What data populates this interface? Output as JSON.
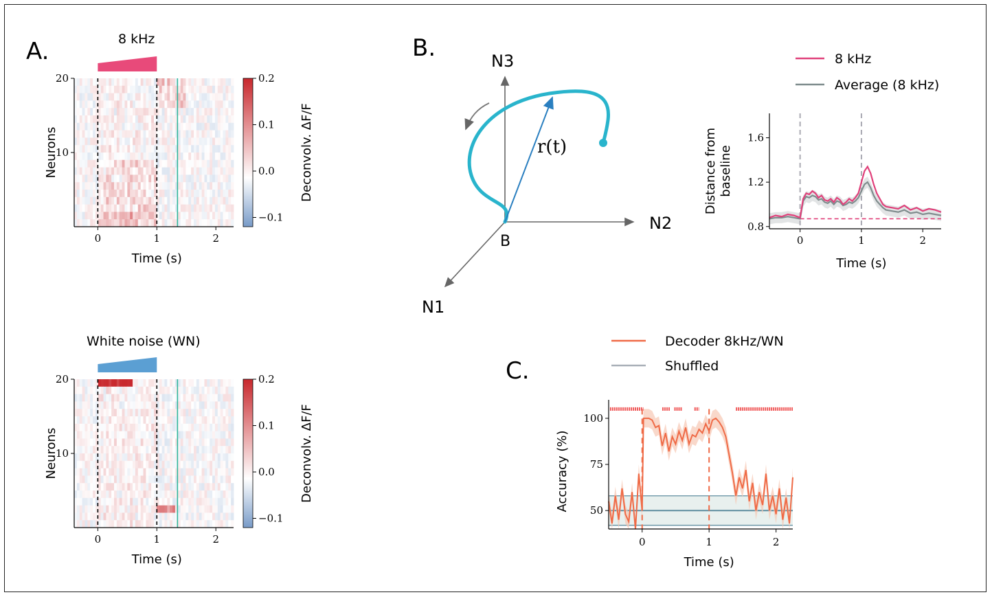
{
  "panel_labels": {
    "a": "A.",
    "b": "B.",
    "c": "C."
  },
  "heatmaps": [
    {
      "id": "8khz",
      "title": "8 kHz",
      "ramp_color": "#e84a7a",
      "ylabel": "Neurons",
      "xlabel": "Time (s)",
      "xticks": [
        "0",
        "1",
        "2"
      ],
      "yticks": [
        "10",
        "20"
      ],
      "cbar_label": "Deconvolv. ΔF/F",
      "cbar_ticks": [
        "0.2",
        "0.1",
        "0.0",
        "−0.1"
      ],
      "seed": 3,
      "mode": "8k"
    },
    {
      "id": "wn",
      "title": "White noise (WN)",
      "ramp_color": "#5b9fd3",
      "ylabel": "Neurons",
      "xlabel": "Time (s)",
      "xticks": [
        "0",
        "1",
        "2"
      ],
      "yticks": [
        "10",
        "20"
      ],
      "cbar_label": "Deconvolv. ΔF/F",
      "cbar_ticks": [
        "0.2",
        "0.1",
        "0.0",
        "−0.1"
      ],
      "seed": 11,
      "mode": "wn"
    }
  ],
  "diagram": {
    "axis_labels": {
      "n1": "N1",
      "n2": "N2",
      "n3": "N3",
      "origin": "B"
    },
    "vector_label": "r(t)",
    "trajectory_color": "#29b4cc",
    "vector_color": "#2a7fc0"
  },
  "chart_data": [
    {
      "type": "line",
      "title": "",
      "xlabel": "Time (s)",
      "ylabel": "Distance from baseline",
      "xlim": [
        -0.5,
        2.3
      ],
      "ylim": [
        0.78,
        1.82
      ],
      "xticks": [
        "0",
        "1",
        "2"
      ],
      "yticks": [
        "0.8",
        "1.2",
        "1.6"
      ],
      "stimulus_markers": [
        0,
        1
      ],
      "baseline": 0.87,
      "series": [
        {
          "name": "8 kHz",
          "color": "#e0407a",
          "x": [
            -0.5,
            -0.4,
            -0.3,
            -0.2,
            -0.1,
            0,
            0.05,
            0.1,
            0.15,
            0.2,
            0.25,
            0.3,
            0.35,
            0.4,
            0.45,
            0.5,
            0.55,
            0.6,
            0.65,
            0.7,
            0.75,
            0.8,
            0.85,
            0.9,
            0.95,
            1.0,
            1.05,
            1.1,
            1.15,
            1.2,
            1.25,
            1.3,
            1.35,
            1.4,
            1.5,
            1.6,
            1.7,
            1.8,
            1.9,
            2.0,
            2.1,
            2.2,
            2.3
          ],
          "y": [
            0.88,
            0.9,
            0.89,
            0.91,
            0.9,
            0.88,
            1.05,
            1.1,
            1.09,
            1.12,
            1.1,
            1.06,
            1.08,
            1.04,
            1.03,
            1.05,
            1.02,
            1.06,
            1.04,
            1.0,
            1.02,
            1.05,
            1.03,
            1.06,
            1.1,
            1.2,
            1.3,
            1.34,
            1.28,
            1.18,
            1.1,
            1.05,
            1.0,
            0.98,
            0.97,
            0.96,
            0.99,
            0.95,
            0.97,
            0.94,
            0.96,
            0.95,
            0.93
          ]
        },
        {
          "name": "Average (8 kHz)",
          "color": "#7f8c8d",
          "x": [
            -0.5,
            -0.4,
            -0.3,
            -0.2,
            -0.1,
            0,
            0.05,
            0.1,
            0.15,
            0.2,
            0.25,
            0.3,
            0.35,
            0.4,
            0.45,
            0.5,
            0.55,
            0.6,
            0.65,
            0.7,
            0.75,
            0.8,
            0.85,
            0.9,
            0.95,
            1.0,
            1.05,
            1.1,
            1.15,
            1.2,
            1.25,
            1.3,
            1.35,
            1.4,
            1.5,
            1.6,
            1.7,
            1.8,
            1.9,
            2.0,
            2.1,
            2.2,
            2.3
          ],
          "y": [
            0.87,
            0.88,
            0.88,
            0.89,
            0.88,
            0.87,
            1.03,
            1.07,
            1.06,
            1.08,
            1.07,
            1.04,
            1.05,
            1.02,
            1.01,
            1.03,
            1.0,
            1.03,
            1.02,
            0.99,
            1.0,
            1.02,
            1.01,
            1.03,
            1.06,
            1.12,
            1.18,
            1.2,
            1.15,
            1.08,
            1.03,
            1.0,
            0.97,
            0.95,
            0.94,
            0.93,
            0.95,
            0.92,
            0.93,
            0.91,
            0.92,
            0.91,
            0.9
          ]
        }
      ],
      "legend": "top-right"
    },
    {
      "type": "line",
      "title": "",
      "xlabel": "Time (s)",
      "ylabel": "Accuracy (%)",
      "xlim": [
        -0.5,
        2.25
      ],
      "ylim": [
        40,
        110
      ],
      "xticks": [
        "0",
        "1",
        "2"
      ],
      "yticks": [
        "50",
        "75",
        "100"
      ],
      "stimulus_markers": [
        0,
        1
      ],
      "shuffled": {
        "mean": 50,
        "lower": 42,
        "upper": 58
      },
      "significance_bar": {
        "y": 105,
        "ranges": [
          [
            -0.48,
            0.02
          ],
          [
            0.3,
            0.42
          ],
          [
            0.48,
            0.6
          ],
          [
            0.78,
            0.85
          ],
          [
            1.4,
            2.25
          ]
        ]
      },
      "series": [
        {
          "name": "Decoder 8kHz/WN",
          "color": "#ef6a46",
          "x": [
            -0.5,
            -0.45,
            -0.4,
            -0.35,
            -0.3,
            -0.25,
            -0.2,
            -0.15,
            -0.1,
            -0.05,
            0,
            0.02,
            0.05,
            0.1,
            0.15,
            0.2,
            0.25,
            0.3,
            0.35,
            0.4,
            0.45,
            0.5,
            0.55,
            0.6,
            0.65,
            0.7,
            0.75,
            0.8,
            0.85,
            0.9,
            0.95,
            1.0,
            1.05,
            1.1,
            1.15,
            1.2,
            1.25,
            1.3,
            1.35,
            1.4,
            1.45,
            1.5,
            1.55,
            1.6,
            1.65,
            1.7,
            1.75,
            1.8,
            1.85,
            1.9,
            1.95,
            2.0,
            2.05,
            2.1,
            2.15,
            2.2,
            2.25
          ],
          "y": [
            55,
            43,
            58,
            45,
            62,
            48,
            44,
            60,
            40,
            70,
            50,
            100,
            100,
            100,
            99,
            95,
            96,
            85,
            92,
            82,
            90,
            86,
            93,
            88,
            95,
            86,
            91,
            90,
            94,
            92,
            97,
            93,
            99,
            100,
            98,
            95,
            90,
            80,
            70,
            58,
            68,
            62,
            72,
            55,
            65,
            50,
            60,
            53,
            70,
            50,
            58,
            48,
            62,
            45,
            57,
            43,
            68
          ]
        },
        {
          "name": "Shuffled",
          "color": "#a9b0b8"
        }
      ],
      "legend": "top"
    }
  ]
}
